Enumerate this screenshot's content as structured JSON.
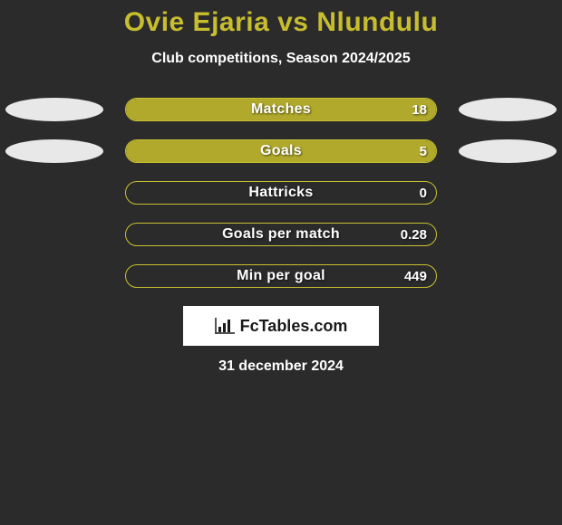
{
  "title": "Ovie Ejaria vs Nlundulu",
  "title_color": "#c7bd2e",
  "subtitle": "Club competitions, Season 2024/2025",
  "background_color": "#2b2b2b",
  "bar_border_color": "#c9c130",
  "bar_fill_color": "#b0a92b",
  "oval_color": "#e8e8e8",
  "text_color": "#ffffff",
  "shadow_color": "rgba(0,0,0,0.6)",
  "logo_text": "FcTables.com",
  "date_text": "31 december 2024",
  "rows": [
    {
      "label": "Matches",
      "left_value": "",
      "right_value": "18",
      "left_oval": true,
      "right_oval": true,
      "fill_left_pct": 0,
      "fill_right_pct": 100
    },
    {
      "label": "Goals",
      "left_value": "",
      "right_value": "5",
      "left_oval": true,
      "right_oval": true,
      "fill_left_pct": 0,
      "fill_right_pct": 100
    },
    {
      "label": "Hattricks",
      "left_value": "",
      "right_value": "0",
      "left_oval": false,
      "right_oval": false,
      "fill_left_pct": 0,
      "fill_right_pct": 0
    },
    {
      "label": "Goals per match",
      "left_value": "",
      "right_value": "0.28",
      "left_oval": false,
      "right_oval": false,
      "fill_left_pct": 0,
      "fill_right_pct": 0
    },
    {
      "label": "Min per goal",
      "left_value": "",
      "right_value": "449",
      "left_oval": false,
      "right_oval": false,
      "fill_left_pct": 0,
      "fill_right_pct": 0
    }
  ]
}
